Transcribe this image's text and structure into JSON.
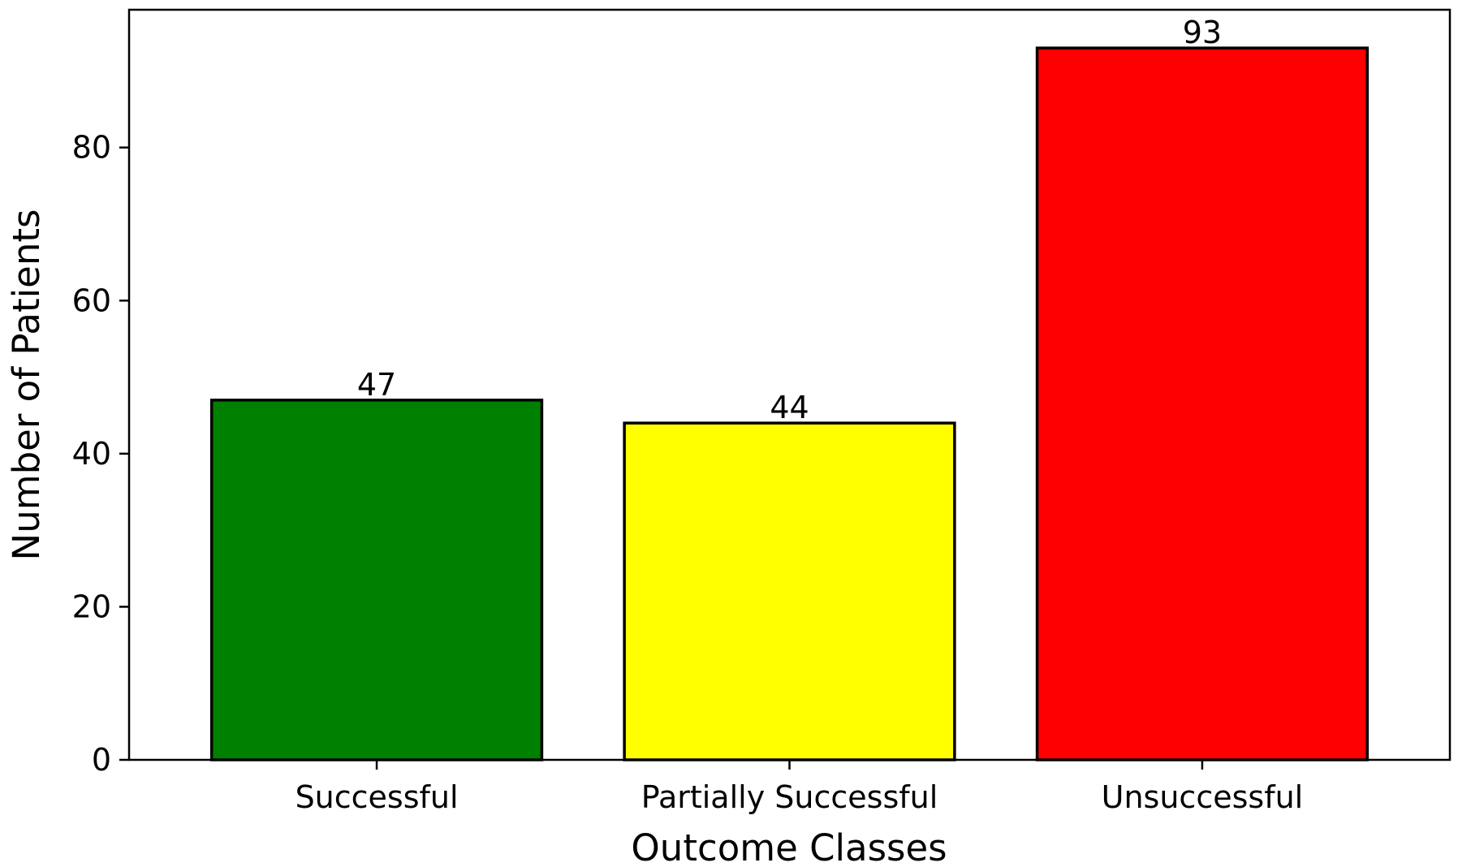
{
  "chart_data": {
    "type": "bar",
    "title": "",
    "xlabel": "Outcome Classes",
    "ylabel": "Number of Patients",
    "categories": [
      "Successful",
      "Partially Successful",
      "Unsuccessful"
    ],
    "values": [
      47,
      44,
      93
    ],
    "value_labels": [
      "47",
      "44",
      "93"
    ],
    "colors": [
      "#008000",
      "#ffff00",
      "#ff0000"
    ],
    "edge_color": "#000000",
    "ylim": [
      0,
      98
    ],
    "yticks": [
      0,
      20,
      40,
      60,
      80
    ],
    "ytick_labels": [
      "0",
      "20",
      "40",
      "60",
      "80"
    ],
    "grid": false,
    "legend": "none"
  }
}
